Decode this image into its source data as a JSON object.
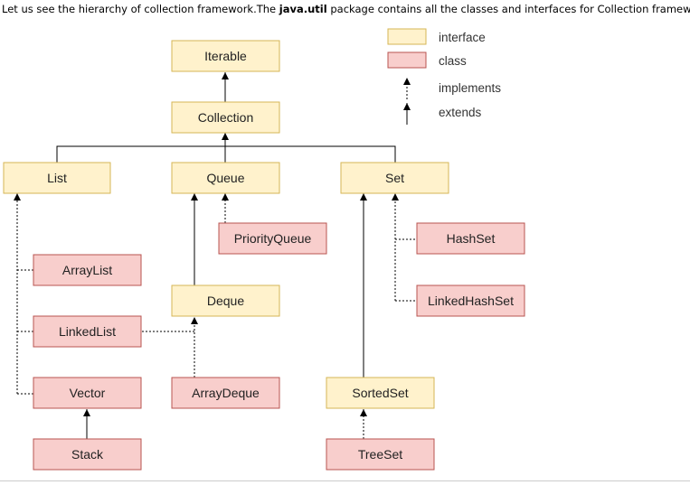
{
  "intro": {
    "before": "Let us see the hierarchy of collection framework.The ",
    "bold": "java.util",
    "after": " package contains all the classes and interfaces for Collection framework."
  },
  "legend": {
    "interface": "interface",
    "class": "class",
    "implements": "implements",
    "extends": "extends"
  },
  "nodes": {
    "iterable": "Iterable",
    "collection": "Collection",
    "list": "List",
    "queue": "Queue",
    "set": "Set",
    "priority_queue": "PriorityQueue",
    "hash_set": "HashSet",
    "array_list": "ArrayList",
    "deque": "Deque",
    "linked_hash_set": "LinkedHashSet",
    "linked_list": "LinkedList",
    "vector": "Vector",
    "array_deque": "ArrayDeque",
    "sorted_set": "SortedSet",
    "stack": "Stack",
    "tree_set": "TreeSet"
  },
  "colors": {
    "interface_fill": "#fff2cc",
    "interface_border": "#d6b656",
    "class_fill": "#f8cecc",
    "class_border": "#b85450"
  }
}
